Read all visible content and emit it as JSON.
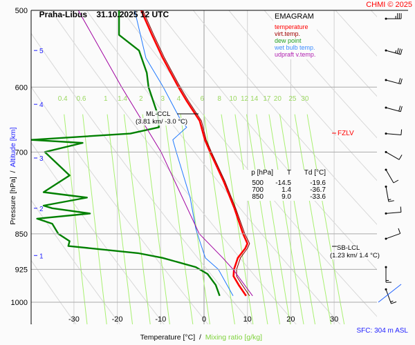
{
  "header": {
    "station": "Praha-Libus",
    "datetime": "31.10.2025 12 UTC",
    "copyright": "CHMI © 2025"
  },
  "legend": {
    "title": "EMAGRAM",
    "items": [
      {
        "label": "temperature",
        "color": "#ff0000"
      },
      {
        "label": "virt.temp.",
        "color": "#a00000"
      },
      {
        "label": "dew point",
        "color": "#008000"
      },
      {
        "label": "wet bulb temp.",
        "color": "#1e78ff"
      },
      {
        "label": "udpraft v.temp.",
        "color": "#a000a0"
      }
    ]
  },
  "table": {
    "headers": [
      "p [hPa]",
      "T",
      "Td [°C]"
    ],
    "rows": [
      [
        "500",
        "-14.5",
        "-19.6"
      ],
      [
        "700",
        "1.4",
        "-36.7"
      ],
      [
        "850",
        "9.0",
        "-33.6"
      ]
    ]
  },
  "annotations": {
    "ml_ccl": "ML-CCL",
    "ml_ccl_detail": "(3.81 km/ -3.0 °C)",
    "sb_lcl": "SB-LCL",
    "sb_lcl_detail": "(1.23 km/ 1.4 °C)",
    "fzlv": "FZLV",
    "sfc": "SFC: 304 m ASL"
  },
  "chart_data": {
    "type": "line",
    "title": "Praha-Libus 31.10.2025 12 UTC",
    "xlabel": "Temperature [°C]",
    "xlabel2": "Mixing ratio [g/kg]",
    "ylabel": "Pressure [hPa]",
    "ylabel2": "Altitude [km]",
    "xlim": [
      -40,
      40
    ],
    "ylim": [
      1000,
      500
    ],
    "x_ticks": [
      "-30",
      "-20",
      "-10",
      "0",
      "10",
      "20",
      "30"
    ],
    "y_ticks": [
      "500",
      "600",
      "700",
      "850",
      "925",
      "1000"
    ],
    "altitude_ticks": [
      "1",
      "2",
      "3",
      "4",
      "5"
    ],
    "altitude_pressures": [
      895,
      800,
      710,
      625,
      550
    ],
    "mixing_ratio_labels": [
      "0.4",
      "0.6",
      "1",
      "1.4",
      "2",
      "3",
      "4",
      "6",
      "8",
      "10",
      "12",
      "14",
      "17",
      "20",
      "25",
      "30"
    ],
    "series": [
      {
        "name": "temperature",
        "p": [
          985,
          960,
          940,
          925,
          900,
          880,
          870,
          850,
          800,
          750,
          700,
          680,
          650,
          620,
          600,
          560,
          530,
          500
        ],
        "T": [
          9.7,
          8.0,
          6.8,
          6.9,
          7.8,
          9.5,
          10.0,
          9.0,
          7.0,
          4.5,
          1.4,
          0.2,
          -1.0,
          -4.0,
          -5.9,
          -9.5,
          -12.0,
          -14.5
        ]
      },
      {
        "name": "virt.temp.",
        "p": [
          985,
          960,
          940,
          925,
          900,
          880,
          870,
          850,
          800,
          750,
          700,
          680,
          650,
          620,
          600,
          560,
          530,
          500
        ],
        "T": [
          10.5,
          8.8,
          7.5,
          7.5,
          8.4,
          10.0,
          10.5,
          9.4,
          7.3,
          4.8,
          1.7,
          0.5,
          -0.6,
          -3.6,
          -5.5,
          -9.1,
          -11.6,
          -14.1
        ]
      },
      {
        "name": "dew point",
        "p": [
          985,
          960,
          935,
          920,
          900,
          890,
          875,
          865,
          850,
          830,
          820,
          810,
          800,
          795,
          780,
          770,
          740,
          700,
          685,
          680,
          670,
          660,
          640,
          600,
          580,
          550,
          530,
          500
        ],
        "Td": [
          3.6,
          2.7,
          0.8,
          -1.9,
          -9.6,
          -15.2,
          -31.3,
          -31.0,
          -33.6,
          -35.0,
          -38.5,
          -26.3,
          -35.0,
          -37.0,
          -27.0,
          -37.0,
          -31.0,
          -36.7,
          -28.0,
          -40.0,
          -17.0,
          -10.4,
          -10.7,
          -12.8,
          -13.2,
          -15.0,
          -19.6,
          -19.6
        ]
      },
      {
        "name": "wet bulb temp.",
        "p": [
          985,
          925,
          900,
          870,
          840,
          780,
          700,
          680,
          660,
          650,
          600,
          560,
          500
        ],
        "T": [
          6.7,
          3.3,
          0.3,
          -0.8,
          -1.9,
          -3.2,
          -6.4,
          -7.2,
          -4.0,
          -5.3,
          -9.4,
          -13.4,
          -16.0
        ]
      },
      {
        "name": "udpraft v.temp.",
        "p": [
          985,
          925,
          900,
          850,
          700,
          600,
          500
        ],
        "T": [
          11.2,
          6.7,
          4.3,
          -1.1,
          -9.9,
          -19.0,
          -29.0
        ]
      }
    ],
    "wind": [
      {
        "p": 510,
        "dir": 270,
        "kt": 25
      },
      {
        "p": 550,
        "dir": 285,
        "kt": 25
      },
      {
        "p": 590,
        "dir": 285,
        "kt": 20
      },
      {
        "p": 630,
        "dir": 285,
        "kt": 20
      },
      {
        "p": 670,
        "dir": 275,
        "kt": 10
      },
      {
        "p": 700,
        "dir": 300,
        "kt": 10
      },
      {
        "p": 730,
        "dir": 330,
        "kt": 10
      },
      {
        "p": 760,
        "dir": 350,
        "kt": 5
      },
      {
        "p": 810,
        "dir": 265,
        "kt": 10
      },
      {
        "p": 860,
        "dir": 250,
        "kt": 10
      },
      {
        "p": 920,
        "dir": 0,
        "kt": 5
      },
      {
        "p": 970,
        "dir": 340,
        "kt": 5
      }
    ]
  }
}
